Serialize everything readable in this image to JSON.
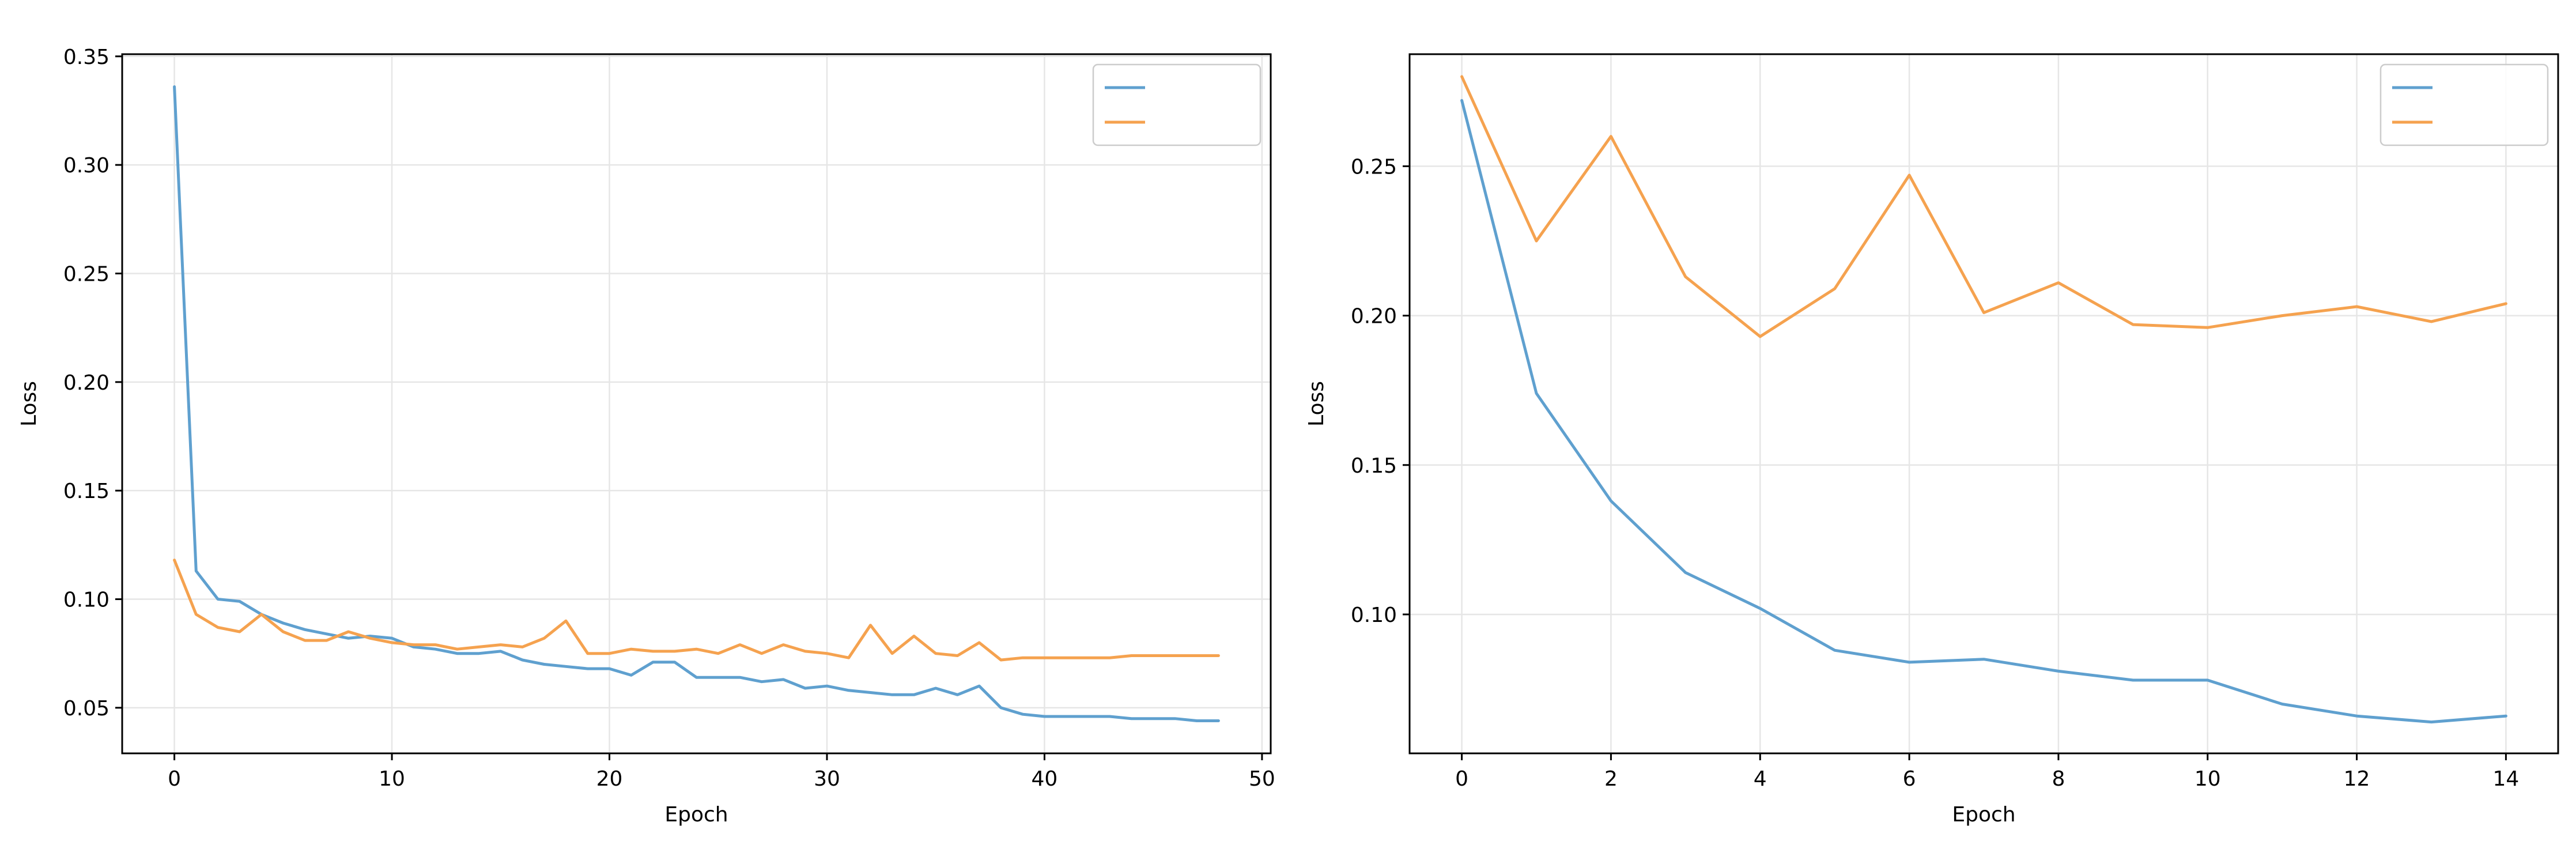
{
  "chart_data": [
    {
      "type": "line",
      "title": "",
      "xlabel": "Epoch",
      "ylabel": "Loss",
      "xlim": [
        -2.4,
        50.4
      ],
      "ylim": [
        0.029,
        0.351
      ],
      "xticks": [
        0,
        10,
        20,
        30,
        40,
        50
      ],
      "yticks": [
        0.05,
        0.1,
        0.15,
        0.2,
        0.25,
        0.3,
        0.35
      ],
      "ytick_labels": [
        "0.05",
        "0.10",
        "0.15",
        "0.20",
        "0.25",
        "0.30",
        "0.35"
      ],
      "grid": true,
      "legend": "top-right",
      "x": [
        0,
        1,
        2,
        3,
        4,
        5,
        6,
        7,
        8,
        9,
        10,
        11,
        12,
        13,
        14,
        15,
        16,
        17,
        18,
        19,
        20,
        21,
        22,
        23,
        24,
        25,
        26,
        27,
        28,
        29,
        30,
        31,
        32,
        33,
        34,
        35,
        36,
        37,
        38,
        39,
        40,
        41,
        42,
        43,
        44,
        45,
        46,
        47,
        48
      ],
      "series": [
        {
          "name": "",
          "color": "#5fa0cf",
          "values": [
            0.336,
            0.113,
            0.1,
            0.099,
            0.093,
            0.089,
            0.086,
            0.084,
            0.082,
            0.083,
            0.082,
            0.078,
            0.077,
            0.075,
            0.075,
            0.076,
            0.072,
            0.07,
            0.069,
            0.068,
            0.068,
            0.065,
            0.071,
            0.071,
            0.064,
            0.064,
            0.064,
            0.062,
            0.063,
            0.059,
            0.06,
            0.058,
            0.057,
            0.056,
            0.056,
            0.059,
            0.056,
            0.06,
            0.05,
            0.047,
            0.046,
            0.046,
            0.046,
            0.046,
            0.045,
            0.045,
            0.045,
            0.044,
            0.044
          ]
        },
        {
          "name": "",
          "color": "#f5a24f",
          "values": [
            0.118,
            0.093,
            0.087,
            0.085,
            0.093,
            0.085,
            0.081,
            0.081,
            0.085,
            0.082,
            0.08,
            0.079,
            0.079,
            0.077,
            0.078,
            0.079,
            0.078,
            0.082,
            0.09,
            0.075,
            0.075,
            0.077,
            0.076,
            0.076,
            0.077,
            0.075,
            0.079,
            0.075,
            0.079,
            0.076,
            0.075,
            0.073,
            0.088,
            0.075,
            0.083,
            0.075,
            0.074,
            0.08,
            0.072,
            0.073,
            0.073,
            0.073,
            0.073,
            0.073,
            0.074,
            0.074,
            0.074,
            0.074,
            0.074
          ]
        }
      ]
    },
    {
      "type": "line",
      "title": "",
      "xlabel": "Epoch",
      "ylabel": "Loss",
      "xlim": [
        -0.7,
        14.7
      ],
      "ylim": [
        0.0535,
        0.2875
      ],
      "xticks": [
        0,
        2,
        4,
        6,
        8,
        10,
        12,
        14
      ],
      "yticks": [
        0.1,
        0.15,
        0.2,
        0.25
      ],
      "ytick_labels": [
        "0.10",
        "0.15",
        "0.20",
        "0.25"
      ],
      "grid": true,
      "legend": "top-right",
      "x": [
        0,
        1,
        2,
        3,
        4,
        5,
        6,
        7,
        8,
        9,
        10,
        11,
        12,
        13,
        14
      ],
      "series": [
        {
          "name": "",
          "color": "#5fa0cf",
          "values": [
            0.272,
            0.174,
            0.138,
            0.114,
            0.102,
            0.088,
            0.084,
            0.085,
            0.081,
            0.078,
            0.078,
            0.07,
            0.066,
            0.064,
            0.066
          ]
        },
        {
          "name": "",
          "color": "#f5a24f",
          "values": [
            0.28,
            0.225,
            0.26,
            0.213,
            0.193,
            0.209,
            0.247,
            0.201,
            0.211,
            0.197,
            0.196,
            0.2,
            0.203,
            0.198,
            0.204
          ]
        }
      ]
    }
  ]
}
